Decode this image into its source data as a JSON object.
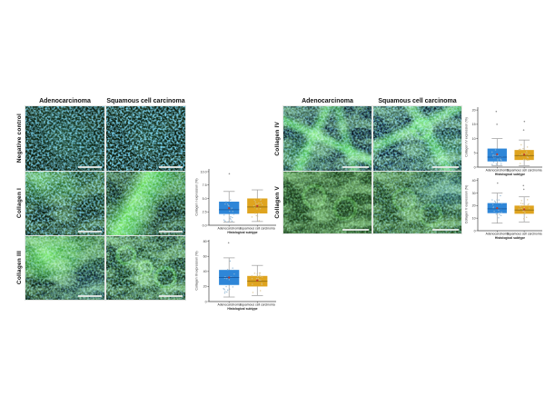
{
  "figure": {
    "background": "#ffffff",
    "left_panel": {
      "column_headers": [
        "Adenocarcinoma",
        "Squamous cell carcinoma"
      ],
      "rows": [
        {
          "label": "Negative control",
          "cells": [
            {
              "appearance": "blue-nuclei-sparse-green"
            },
            {
              "appearance": "blue-nuclei-dense"
            }
          ]
        },
        {
          "label": "Collagen I",
          "cells": [
            {
              "appearance": "blue-nuclei-green-patches"
            },
            {
              "appearance": "bright-green-diagonal-band"
            }
          ]
        },
        {
          "label": "Collagen III",
          "cells": [
            {
              "appearance": "large-green-fibrous-mass"
            },
            {
              "appearance": "green-mesh-network"
            }
          ]
        }
      ]
    },
    "right_panel": {
      "column_headers": [
        "Adenocarcinoma",
        "Squamous cell carcinoma"
      ],
      "rows": [
        {
          "label": "Collagen IV",
          "cells": [
            {
              "appearance": "green-branching-network-on-blue"
            },
            {
              "appearance": "green-network-blue-clusters"
            }
          ]
        },
        {
          "label": "Collagen V",
          "cells": [
            {
              "appearance": "dim-green-mesh"
            },
            {
              "appearance": "green-mesh-blue-right"
            }
          ]
        }
      ]
    },
    "scale_bar": {
      "present_in_every_image": true,
      "color": "#e6e9e6"
    }
  },
  "chart_data": [
    {
      "id": "collagen-i",
      "type": "box",
      "ylabel": "Collagen I expression (%)",
      "xlabel": "Histological subtype",
      "categories": [
        "Adenocarcinoma",
        "Squamous cell carcinoma"
      ],
      "ylim": [
        0,
        10.5
      ],
      "yticks": [
        "0.0",
        "2.5",
        "5.0",
        "7.5",
        "10.0"
      ],
      "series": [
        {
          "name": "Adenocarcinoma",
          "color": "#2E86D8",
          "median_color": "#1B5FA8",
          "whisker_low": 0.6,
          "q1": 2.1,
          "median": 2.9,
          "q3": 4.4,
          "whisker_high": 6.3,
          "mean": 3.2,
          "outliers": [
            9.6
          ],
          "n_samples_approx": 20
        },
        {
          "name": "Squamous cell carcinoma",
          "color": "#DFA41F",
          "median_color": "#9C7413",
          "whisker_low": 0.7,
          "q1": 2.2,
          "median": 3.4,
          "q3": 5.0,
          "whisker_high": 6.6,
          "mean": 3.6,
          "outliers": [],
          "n_samples_approx": 20
        }
      ]
    },
    {
      "id": "collagen-iii",
      "type": "box",
      "ylabel": "Collagen III expression (%)",
      "xlabel": "Histological subtype",
      "categories": [
        "Adenocarcinoma",
        "Squamous cell carcinoma"
      ],
      "ylim": [
        0,
        82
      ],
      "yticks": [
        "0",
        "20",
        "40",
        "60",
        "80"
      ],
      "series": [
        {
          "name": "Adenocarcinoma",
          "color": "#2E86D8",
          "median_color": "#1B5FA8",
          "whisker_low": 6,
          "q1": 22,
          "median": 32,
          "q3": 42,
          "whisker_high": 58,
          "mean": 32,
          "outliers": [
            78
          ],
          "n_samples_approx": 20
        },
        {
          "name": "Squamous cell carcinoma",
          "color": "#DFA41F",
          "median_color": "#9C7413",
          "whisker_low": 8,
          "q1": 20,
          "median": 27,
          "q3": 34,
          "whisker_high": 48,
          "mean": 28,
          "outliers": [],
          "n_samples_approx": 20
        }
      ]
    },
    {
      "id": "collagen-iv",
      "type": "box",
      "ylabel": "Collagen IV expression (%)",
      "xlabel": "Histological subtype",
      "categories": [
        "Adenocarcinoma",
        "Squamous cell carcinoma"
      ],
      "ylim": [
        0,
        21
      ],
      "yticks": [
        "0",
        "5",
        "10",
        "15",
        "20"
      ],
      "series": [
        {
          "name": "Adenocarcinoma",
          "color": "#2E86D8",
          "median_color": "#1B5FA8",
          "whisker_low": 0.5,
          "q1": 2.0,
          "median": 3.5,
          "q3": 6.5,
          "whisker_high": 10,
          "mean": 4.5,
          "outliers": [
            15,
            19.5
          ],
          "n_samples_approx": 22
        },
        {
          "name": "Squamous cell carcinoma",
          "color": "#DFA41F",
          "median_color": "#9C7413",
          "whisker_low": 0.5,
          "q1": 2.5,
          "median": 4.0,
          "q3": 6.0,
          "whisker_high": 9.5,
          "mean": 4.4,
          "outliers": [
            13,
            16
          ],
          "n_samples_approx": 22
        }
      ]
    },
    {
      "id": "collagen-v",
      "type": "box",
      "ylabel": "Collagen V expression (%)",
      "xlabel": "Histological subtype",
      "categories": [
        "Adenocarcinoma",
        "Squamous cell carcinoma"
      ],
      "ylim": [
        0,
        42
      ],
      "yticks": [
        "0",
        "10",
        "20",
        "30",
        "40"
      ],
      "series": [
        {
          "name": "Adenocarcinoma",
          "color": "#2E86D8",
          "median_color": "#1B5FA8",
          "whisker_low": 6,
          "q1": 14,
          "median": 17.5,
          "q3": 22,
          "whisker_high": 30,
          "mean": 18,
          "outliers": [
            38
          ],
          "n_samples_approx": 20
        },
        {
          "name": "Squamous cell carcinoma",
          "color": "#DFA41F",
          "median_color": "#9C7413",
          "whisker_low": 7,
          "q1": 13.5,
          "median": 16.5,
          "q3": 20,
          "whisker_high": 27,
          "mean": 17,
          "outliers": [
            33,
            36
          ],
          "n_samples_approx": 20
        }
      ]
    }
  ],
  "style": {
    "box_blue": "#2E86D8",
    "box_orange": "#DFA41F",
    "mean_marker": "#C0392B",
    "axis_color": "#444444",
    "jitter_blue": "#8FB4D2",
    "jitter_orange": "#D8C28B"
  }
}
